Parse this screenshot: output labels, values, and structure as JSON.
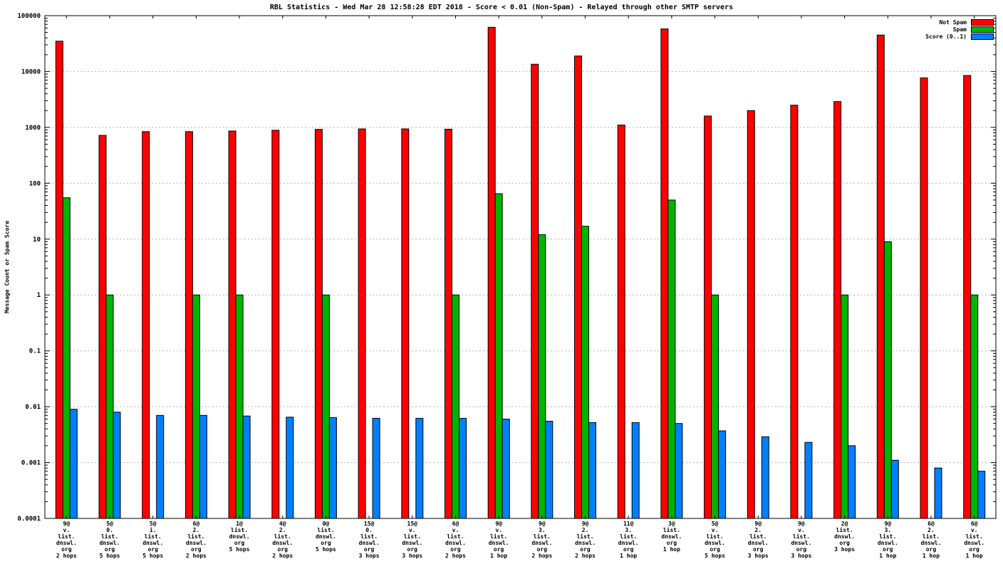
{
  "chart_data": {
    "type": "bar",
    "title": "RBL Statistics - Wed Mar 28 12:58:28 EDT 2018 - Score < 0.01 (Non-Spam) - Relayed through other SMTP servers",
    "ylabel": "Message Count or Spam Score",
    "yscale": "log",
    "ylim": [
      0.0001,
      100000
    ],
    "ytick_labels": [
      "100000",
      "10000",
      "1000",
      "100",
      "10",
      "1",
      "0.1",
      "0.01",
      "0.001",
      "0.0001"
    ],
    "grid": true,
    "legend_position": "top-right",
    "categories": [
      [
        "9@",
        "v.",
        "list.",
        "dnswl.",
        "org",
        "2 hops"
      ],
      [
        "5@",
        "0.",
        "list.",
        "dnswl.",
        "org",
        "5 hops"
      ],
      [
        "5@",
        "i.",
        "list.",
        "dnswl.",
        "org",
        "5 hops"
      ],
      [
        "6@",
        "2.",
        "list.",
        "dnswl.",
        "org",
        "2 hops"
      ],
      [
        "1@",
        "list.",
        "dnswl.",
        "org",
        "5 hops"
      ],
      [
        "4@",
        "2.",
        "list.",
        "dnswl.",
        "org",
        "2 hops"
      ],
      [
        "0@",
        "list.",
        "dnswl.",
        "org",
        "5 hops"
      ],
      [
        "15@",
        "0.",
        "list.",
        "dnswl.",
        "org",
        "3 hops"
      ],
      [
        "15@",
        "v.",
        "list.",
        "dnswl.",
        "org",
        "3 hops"
      ],
      [
        "6@",
        "v.",
        "list.",
        "dnswl.",
        "org",
        "2 hops"
      ],
      [
        "9@",
        "v.",
        "list.",
        "dnswl.",
        "org",
        "1 hop"
      ],
      [
        "9@",
        "3.",
        "list.",
        "dnswl.",
        "org",
        "2 hops"
      ],
      [
        "9@",
        "2.",
        "list.",
        "dnswl.",
        "org",
        "2 hops"
      ],
      [
        "11@",
        "3.",
        "list.",
        "dnswl.",
        "org",
        "1 hop"
      ],
      [
        "3@",
        "list.",
        "dnswl.",
        "org",
        "1 hop"
      ],
      [
        "5@",
        "v.",
        "list.",
        "dnswl.",
        "org",
        "5 hops"
      ],
      [
        "9@",
        "2.",
        "list.",
        "dnswl.",
        "org",
        "3 hops"
      ],
      [
        "9@",
        "v.",
        "list.",
        "dnswl.",
        "org",
        "3 hops"
      ],
      [
        "2@",
        "list.",
        "dnswl.",
        "org",
        "3 hops"
      ],
      [
        "9@",
        "3.",
        "list.",
        "dnswl.",
        "org",
        "1 hop"
      ],
      [
        "6@",
        "2.",
        "list.",
        "dnswl.",
        "org",
        "1 hop"
      ],
      [
        "6@",
        "v.",
        "list.",
        "dnswl.",
        "org",
        "1 hop"
      ]
    ],
    "series": [
      {
        "name": "Not Spam",
        "color": "#ff0000",
        "values": [
          35000,
          720,
          840,
          840,
          860,
          890,
          920,
          940,
          940,
          930,
          62000,
          13500,
          19000,
          1100,
          58000,
          1600,
          2000,
          2500,
          2900,
          45000,
          7700,
          8500
        ]
      },
      {
        "name": "Spam",
        "color": "#00b400",
        "values": [
          55,
          1,
          0,
          1,
          1,
          0,
          1,
          0,
          0,
          1,
          65,
          12,
          17,
          0,
          50,
          1,
          0,
          0,
          1,
          9,
          0,
          1
        ]
      },
      {
        "name": "Score (0..1)",
        "color": "#0080ff",
        "values": [
          0.009,
          0.008,
          0.007,
          0.007,
          0.0068,
          0.0065,
          0.0064,
          0.0062,
          0.0062,
          0.0062,
          0.006,
          0.0055,
          0.0052,
          0.0052,
          0.005,
          0.0037,
          0.0029,
          0.0023,
          0.002,
          0.0011,
          0.0008,
          0.0007
        ]
      }
    ]
  }
}
